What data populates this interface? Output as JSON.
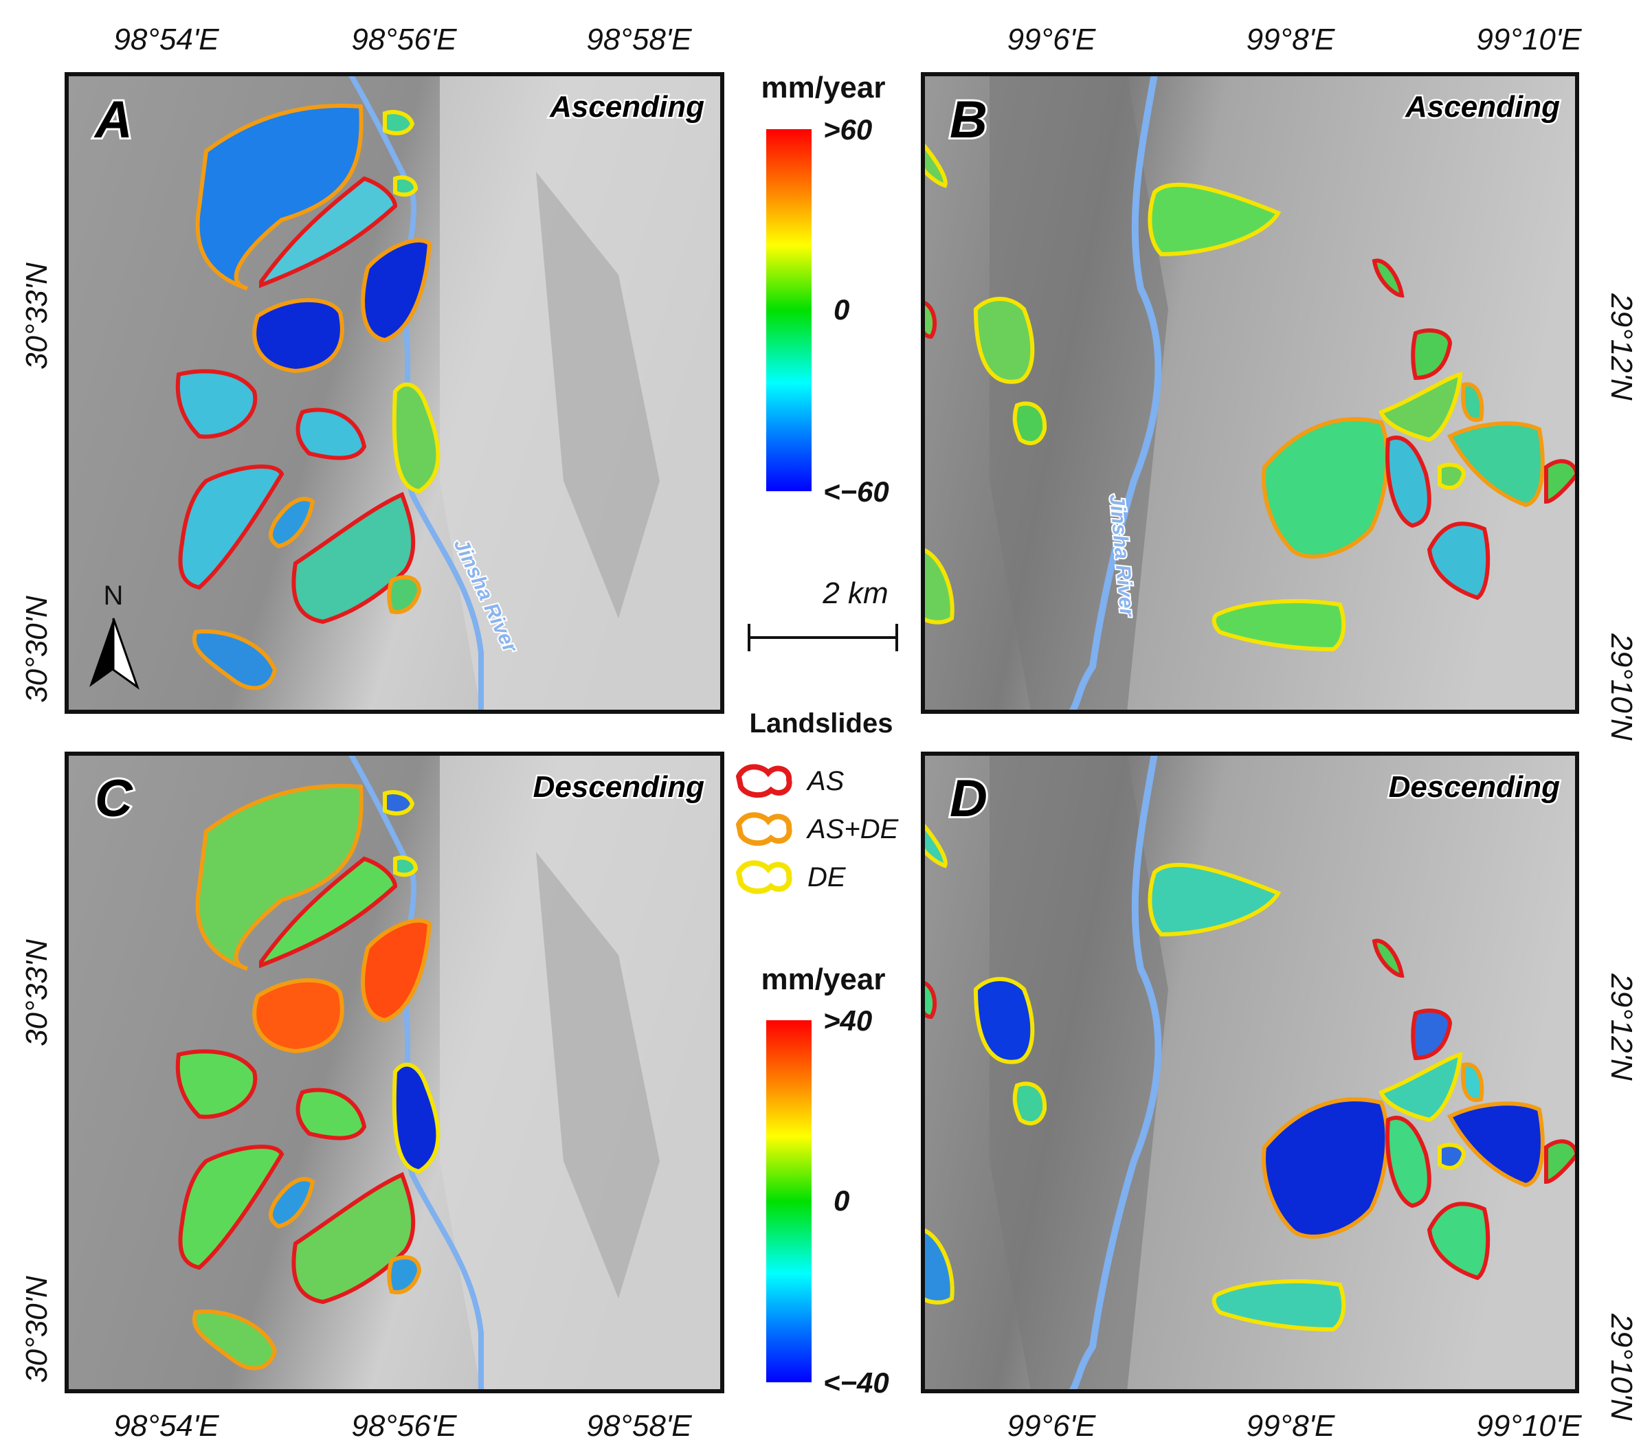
{
  "panels": {
    "A": {
      "label": "A",
      "orbit": "Ascending"
    },
    "B": {
      "label": "B",
      "orbit": "Ascending"
    },
    "C": {
      "label": "C",
      "orbit": "Descending"
    },
    "D": {
      "label": "D",
      "orbit": "Descending"
    }
  },
  "left_coords": {
    "lon_top": [
      "98°54'E",
      "98°56'E",
      "98°58'E"
    ],
    "lon_bottom": [
      "98°54'E",
      "98°56'E",
      "98°58'E"
    ],
    "lat_top": [
      "30°33'N",
      "30°30'N"
    ],
    "lat_bottom": [
      "30°33'N",
      "30°30'N"
    ]
  },
  "right_coords": {
    "lon_top": [
      "99°6'E",
      "99°8'E",
      "99°10'E"
    ],
    "lon_bottom": [
      "99°6'E",
      "99°8'E",
      "99°10'E"
    ],
    "lat_top": [
      "29°12'N",
      "29°10'N"
    ],
    "lat_bottom": [
      "29°12'N",
      "29°10'N"
    ]
  },
  "river_label": "Jinsha River",
  "north_arrow": "N",
  "scale_bar": "2 km",
  "colorbar_ascending": {
    "unit": "mm/year",
    "max_label": ">60",
    "mid_label": "0",
    "min_label": "<−60"
  },
  "colorbar_descending": {
    "unit": "mm/year",
    "max_label": ">40",
    "mid_label": "0",
    "min_label": "<−40"
  },
  "legend": {
    "title": "Landslides",
    "items": [
      {
        "label": "AS",
        "color": "#e31a1c"
      },
      {
        "label": "AS+DE",
        "color": "#f39c12"
      },
      {
        "label": "DE",
        "color": "#f5e400"
      }
    ]
  },
  "colors": {
    "river": "#7fb0ef",
    "frame": "#111111",
    "terrain": "#bdbdbd"
  }
}
